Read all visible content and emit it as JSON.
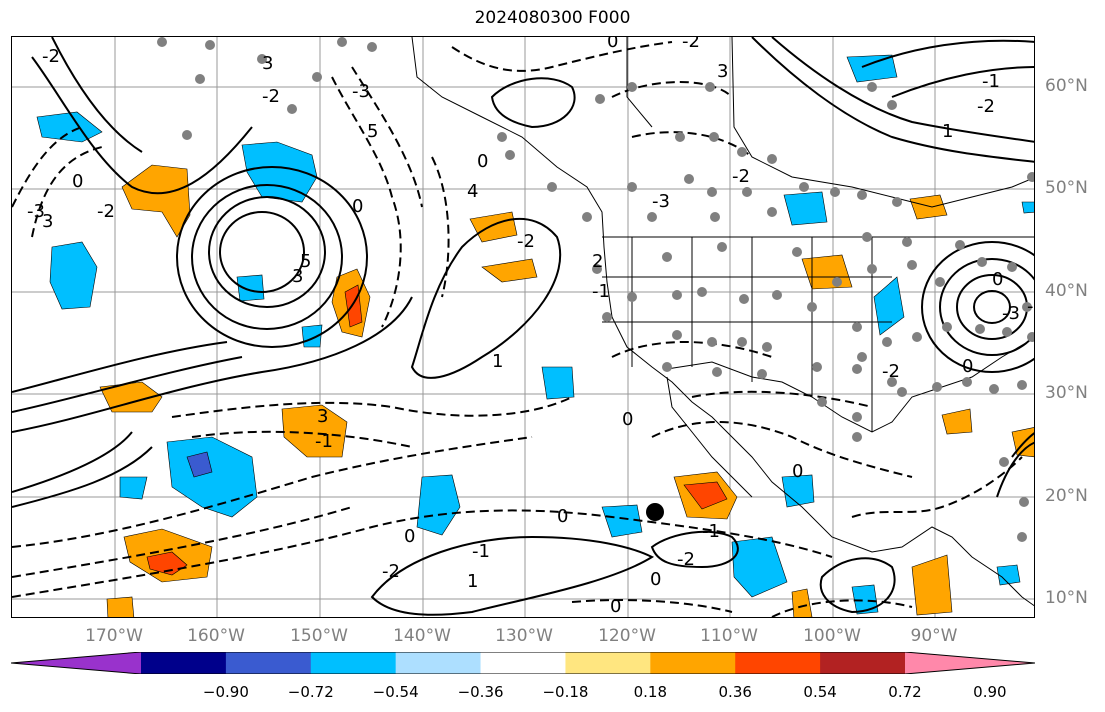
{
  "title": "2024080300 F000",
  "lat_labels": [
    "60°N",
    "50°N",
    "40°N",
    "30°N",
    "20°N",
    "10°N"
  ],
  "lon_labels": [
    "170°W",
    "160°W",
    "150°W",
    "140°W",
    "130°W",
    "120°W",
    "110°W",
    "100°W",
    "90°W"
  ],
  "colorbar": {
    "colors": [
      "#9932CC",
      "#00008B",
      "#3A5BD0",
      "#00BFFF",
      "#ADDFFF",
      "#FFFFFF",
      "#FFE680",
      "#FFA500",
      "#FF4500",
      "#B22222",
      "#FF88AA"
    ],
    "tick_labels": [
      "−0.90",
      "−0.72",
      "−0.54",
      "−0.36",
      "−0.18",
      "0.18",
      "0.36",
      "0.54",
      "0.72",
      "0.90"
    ]
  },
  "contour_labels": [
    "-2",
    "3",
    "-3",
    "-2",
    "0",
    "3",
    "-2",
    "-3",
    "5",
    "0",
    "-2",
    "0",
    "3",
    "5",
    "4",
    "0",
    "3",
    "-1",
    "0",
    "0",
    "1",
    "0",
    "-3",
    "-1",
    "-2",
    "-2",
    "0",
    "-2",
    "1",
    "-1",
    "0",
    "0",
    "-2",
    "-1",
    "1",
    "-1",
    "0",
    "-2",
    "2",
    "3",
    "-2",
    "0",
    "-3",
    "-2"
  ],
  "legend": {
    "storm_marker": "black-dot"
  }
}
